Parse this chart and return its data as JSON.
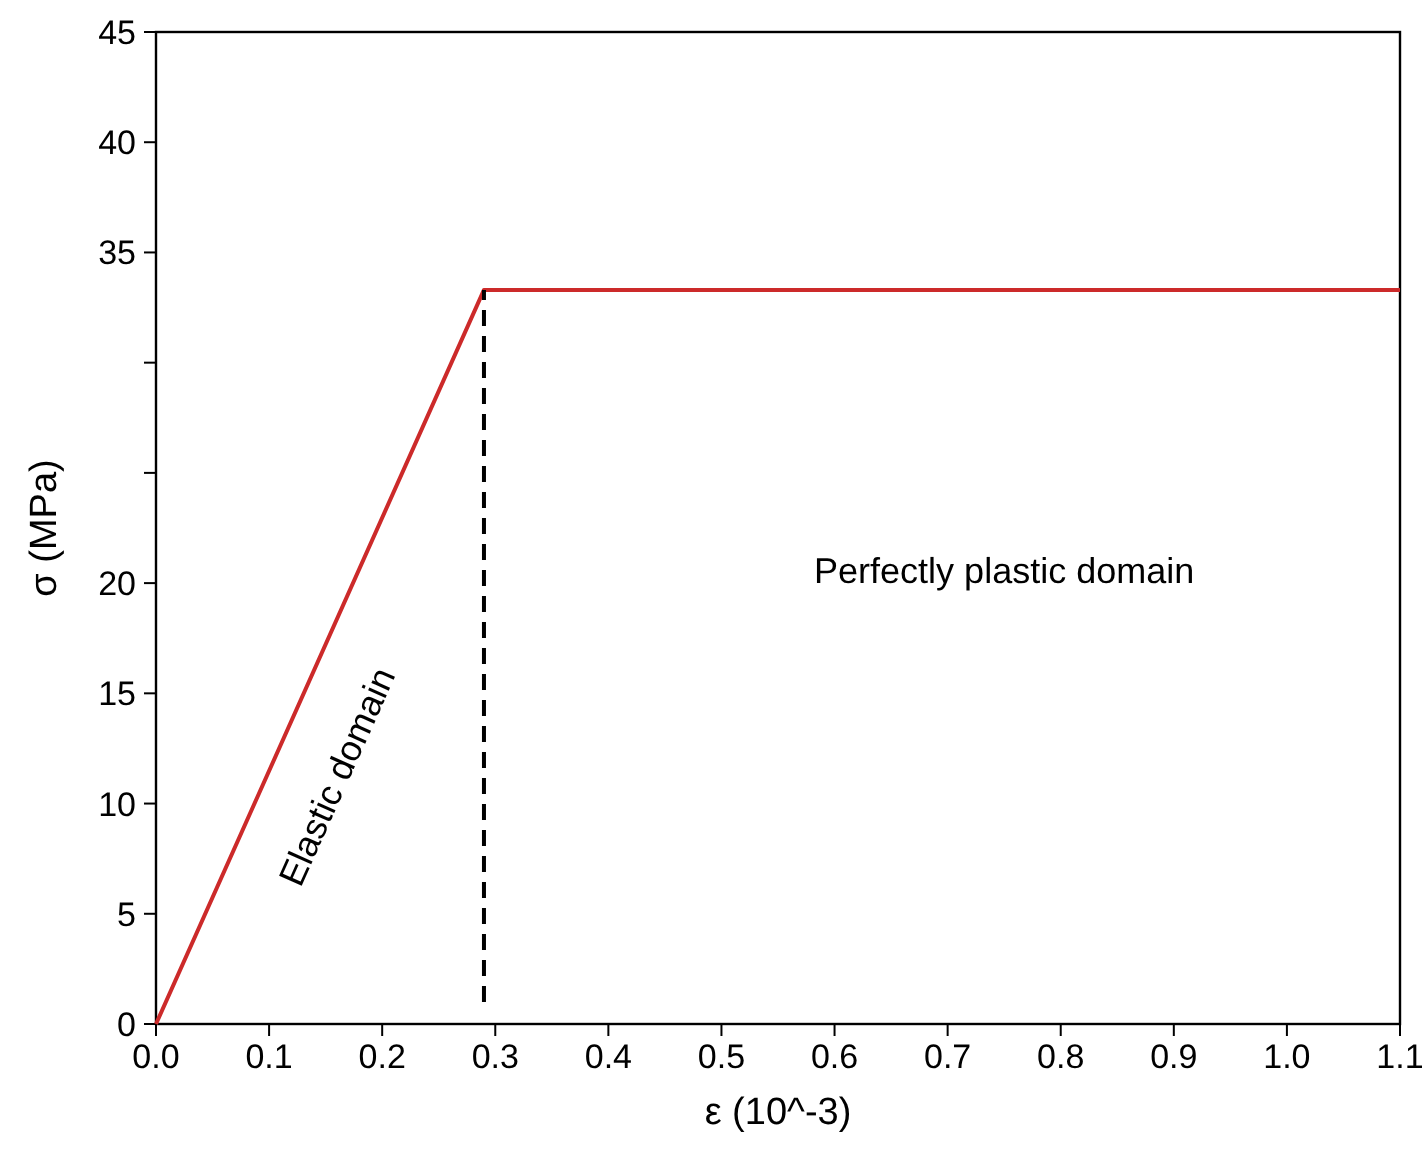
{
  "chart_data": {
    "type": "line",
    "xlabel": "ε (10^-3)",
    "ylabel": "σ (MPa)",
    "series": [
      {
        "color": "#cc2a2a",
        "x": [
          0,
          0.29,
          1.1
        ],
        "values": [
          0,
          33.3,
          33.3
        ]
      },
      {
        "color": "#000000",
        "x": [
          0.29,
          0.29
        ],
        "values": [
          1,
          33.3
        ],
        "line_style": "dashed"
      }
    ],
    "xlim": [
      0,
      1.1
    ],
    "xticks": [
      {
        "value": 0,
        "label": "0.0"
      },
      0.1,
      0.2,
      0.3,
      0.4,
      0.5,
      0.6,
      0.7,
      0.8,
      0.9,
      {
        "value": 1,
        "label": "1.0"
      },
      1.1
    ],
    "ylim": [
      0,
      45
    ],
    "yticks": [
      0,
      5,
      10,
      15,
      20,
      {
        "value": 25,
        "label": null
      },
      {
        "value": 30,
        "label": null
      },
      35,
      40,
      45
    ],
    "annotations": [
      "Elastic domain",
      "Perfectly plastic domain"
    ],
    "grid": false,
    "marker": "none",
    "line_style": "solid"
  }
}
